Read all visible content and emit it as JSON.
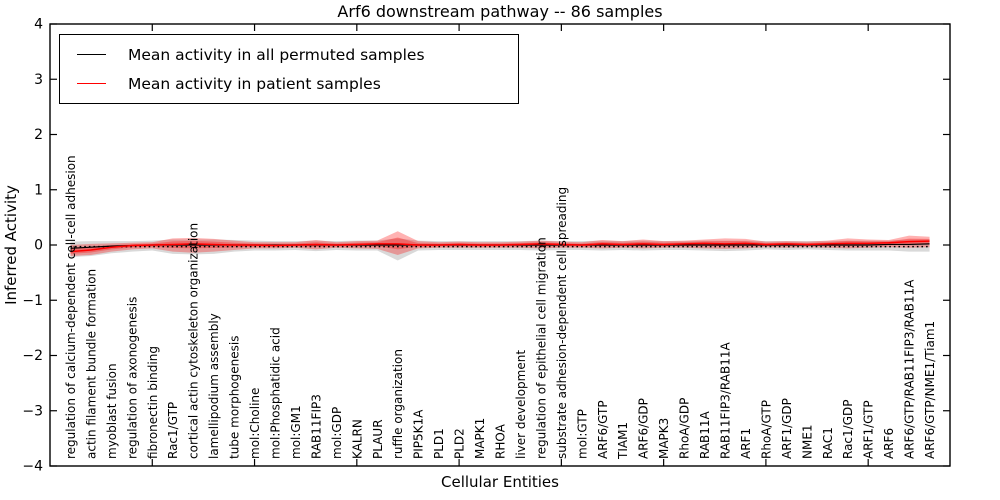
{
  "figure": {
    "title": "Arf6 downstream pathway -- 86 samples",
    "legend": [
      {
        "label": "Mean activity in all permuted samples",
        "color": "#000000"
      },
      {
        "label": "Mean activity in patient samples",
        "color": "#ff0000"
      }
    ]
  },
  "chart_data": {
    "type": "line",
    "title": "Arf6 downstream pathway -- 86 samples",
    "xlabel": "Cellular Entities",
    "ylabel": "Inferred Activity",
    "ylim": [
      -4,
      4
    ],
    "yticks": [
      4,
      3,
      2,
      1,
      0,
      -1,
      -2,
      -3,
      -4
    ],
    "grid": false,
    "legend_position": "upper left",
    "categories": [
      "regulation of calcium-dependent cell-cell adhesion",
      "actin filament bundle formation",
      "myoblast fusion",
      "regulation of axonogenesis",
      "fibronectin binding",
      "Rac1/GTP",
      "cortical actin cytoskeleton organization",
      "lamellipodium assembly",
      "tube morphogenesis",
      "mol:Choline",
      "mol:Phosphatidic acid",
      "mol:GM1",
      "RAB11FIP3",
      "mol:GDP",
      "KALRN",
      "PLAUR",
      "ruffle organization",
      "PIP5K1A",
      "PLD1",
      "PLD2",
      "MAPK1",
      "RHOA",
      "liver development",
      "regulation of epithelial cell migration",
      "substrate adhesion-dependent cell spreading",
      "mol:GTP",
      "ARF6/GTP",
      "TIAM1",
      "ARF6/GDP",
      "MAPK3",
      "RhoA/GDP",
      "RAB11A",
      "RAB11FIP3/RAB11A",
      "ARF1",
      "RhoA/GTP",
      "ARF1/GDP",
      "NME1",
      "RAC1",
      "Rac1/GDP",
      "ARF1/GTP",
      "ARF6",
      "ARF6/GTP/RAB11FIP3/RAB11A",
      "ARF6/GTP/NME1/Tiam1"
    ],
    "series": [
      {
        "name": "Mean activity in all permuted samples",
        "color": "#000000",
        "style": "solid",
        "values": [
          -0.06,
          -0.04,
          -0.02,
          -0.01,
          0,
          0,
          0,
          0,
          0,
          0,
          0,
          0,
          0,
          0,
          0,
          0,
          0,
          0,
          0,
          0,
          0,
          0,
          0,
          0,
          0,
          0,
          0,
          0,
          0,
          0,
          0,
          0,
          0,
          0,
          0,
          0,
          0,
          0,
          0,
          0,
          0.01,
          0.01,
          0.02
        ]
      },
      {
        "name": "Mean activity in patient samples",
        "color": "#ff0000",
        "style": "solid",
        "values": [
          -0.12,
          -0.09,
          -0.04,
          -0.01,
          0.0,
          0.01,
          0.02,
          0.01,
          0.0,
          0.0,
          -0.01,
          0.0,
          0.01,
          0.0,
          0.01,
          0.02,
          0.02,
          0.0,
          0.0,
          0.01,
          0.0,
          0.0,
          0.01,
          0.02,
          0.01,
          0.0,
          0.02,
          0.01,
          0.02,
          0.01,
          0.02,
          0.03,
          0.02,
          0.03,
          0.01,
          0.02,
          0.01,
          0.02,
          0.03,
          0.03,
          0.04,
          0.06,
          0.07
        ]
      }
    ],
    "bands": [
      {
        "name": "permuted-sample-range",
        "color": "rgba(120,120,120,0.28)",
        "upper": [
          0.06,
          0.07,
          0.07,
          0.07,
          0.08,
          0.1,
          0.1,
          0.1,
          0.09,
          0.08,
          0.07,
          0.07,
          0.08,
          0.07,
          0.08,
          0.08,
          0.12,
          0.08,
          0.07,
          0.07,
          0.07,
          0.07,
          0.07,
          0.08,
          0.07,
          0.07,
          0.08,
          0.07,
          0.08,
          0.07,
          0.07,
          0.08,
          0.08,
          0.08,
          0.07,
          0.07,
          0.07,
          0.07,
          0.08,
          0.08,
          0.08,
          0.1,
          0.1
        ],
        "lower": [
          -0.22,
          -0.2,
          -0.15,
          -0.12,
          -0.1,
          -0.16,
          -0.17,
          -0.16,
          -0.12,
          -0.1,
          -0.1,
          -0.09,
          -0.11,
          -0.09,
          -0.1,
          -0.1,
          -0.28,
          -0.1,
          -0.09,
          -0.09,
          -0.09,
          -0.09,
          -0.09,
          -0.1,
          -0.09,
          -0.09,
          -0.1,
          -0.09,
          -0.1,
          -0.09,
          -0.09,
          -0.1,
          -0.11,
          -0.1,
          -0.08,
          -0.09,
          -0.08,
          -0.09,
          -0.1,
          -0.1,
          -0.1,
          -0.12,
          -0.12
        ]
      },
      {
        "name": "patient-sample-range",
        "color": "rgba(255,0,0,0.30)",
        "upper": [
          0.0,
          0.02,
          0.03,
          0.04,
          0.05,
          0.12,
          0.13,
          0.11,
          0.08,
          0.05,
          0.05,
          0.05,
          0.09,
          0.05,
          0.07,
          0.08,
          0.25,
          0.07,
          0.05,
          0.06,
          0.05,
          0.05,
          0.06,
          0.08,
          0.06,
          0.05,
          0.09,
          0.07,
          0.1,
          0.07,
          0.08,
          0.1,
          0.12,
          0.11,
          0.06,
          0.07,
          0.06,
          0.08,
          0.12,
          0.1,
          0.09,
          0.17,
          0.15
        ],
        "lower": [
          -0.2,
          -0.18,
          -0.12,
          -0.08,
          -0.06,
          -0.12,
          -0.14,
          -0.12,
          -0.09,
          -0.06,
          -0.06,
          -0.05,
          -0.08,
          -0.05,
          -0.06,
          -0.07,
          -0.18,
          -0.06,
          -0.05,
          -0.05,
          -0.05,
          -0.05,
          -0.05,
          -0.06,
          -0.05,
          -0.05,
          -0.06,
          -0.05,
          -0.06,
          -0.05,
          -0.05,
          -0.06,
          -0.07,
          -0.06,
          -0.04,
          -0.05,
          -0.04,
          -0.05,
          -0.06,
          -0.05,
          -0.04,
          -0.05,
          -0.04
        ]
      }
    ],
    "zero_line": {
      "style": "dotted",
      "color": "#000000",
      "y": 0
    }
  }
}
